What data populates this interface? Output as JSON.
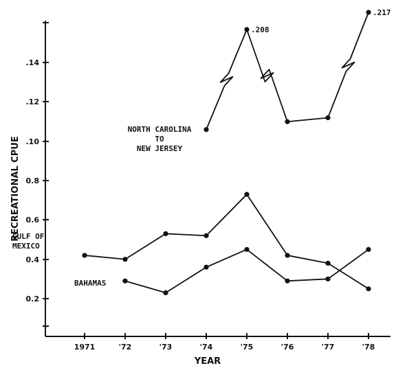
{
  "chart_data": {
    "type": "line",
    "title": "",
    "xlabel": "YEAR",
    "ylabel": "RECREATIONAL CPUE",
    "categories": [
      "1971",
      "'72",
      "'73",
      "'74",
      "'75",
      "'76",
      "'77",
      "'78"
    ],
    "y_tick_labels": [
      ".14",
      ".12",
      ".10",
      "0.8",
      "0.6",
      "0.4",
      "0.2"
    ],
    "axis_note": "Upper panel (.10–.14) and lower panel (0.2–0.8) share the axis; upper panel breaks off-scale at 1975 and 1978",
    "grid": false,
    "series": [
      {
        "name": "NORTH CAROLINA TO NEW JERSEY",
        "label_lines": [
          "NORTH CAROLINA",
          "TO",
          "NEW JERSEY"
        ],
        "x": [
          "'74",
          "'75",
          "'76",
          "'77",
          "'78"
        ],
        "values": [
          0.106,
          0.208,
          0.11,
          0.112,
          0.217
        ],
        "off_scale": [
          "'75",
          "'78"
        ],
        "data_labels": {
          "'75": ".208",
          "'78": ".217"
        }
      },
      {
        "name": "GULF OF MEXICO",
        "label_lines": [
          "GULF OF",
          "MEXICO"
        ],
        "x": [
          "1971",
          "'72",
          "'73",
          "'74",
          "'75",
          "'76",
          "'77",
          "'78"
        ],
        "values": [
          0.42,
          0.4,
          0.53,
          0.52,
          0.73,
          0.42,
          0.38,
          0.25
        ]
      },
      {
        "name": "BAHAMAS",
        "label_lines": [
          "BAHAMAS"
        ],
        "x": [
          "'72",
          "'73",
          "'74",
          "'75",
          "'76",
          "'77",
          "'78"
        ],
        "values": [
          0.29,
          0.23,
          0.36,
          0.45,
          0.29,
          0.3,
          0.45
        ]
      }
    ]
  }
}
